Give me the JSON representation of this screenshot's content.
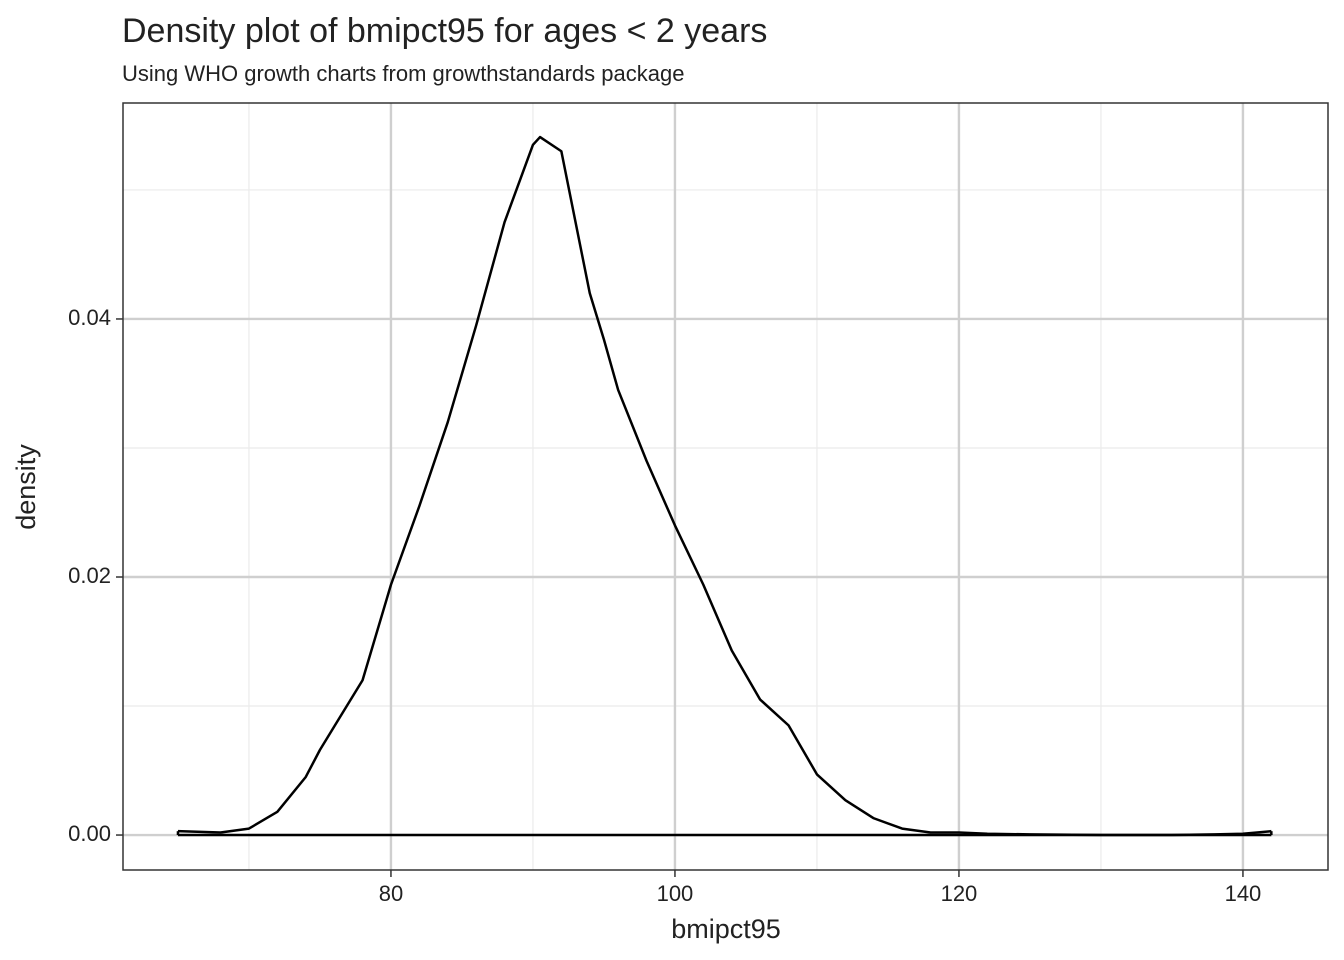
{
  "chart_data": {
    "type": "density",
    "title": "Density plot of bmipct95 for ages < 2 years",
    "subtitle": "Using WHO growth charts from growthstandards package",
    "xlabel": "bmipct95",
    "ylabel": "density",
    "x": [
      65,
      68,
      70,
      72,
      74,
      75,
      76,
      78,
      80,
      82,
      84,
      86,
      88,
      90,
      90.5,
      92,
      94,
      95,
      96,
      98,
      100,
      102,
      104,
      106,
      108,
      110,
      112,
      114,
      116,
      118,
      120,
      122,
      125,
      130,
      135,
      138,
      140,
      142
    ],
    "values": [
      0.0003,
      0.0002,
      0.0005,
      0.0018,
      0.0045,
      0.0066,
      0.0084,
      0.012,
      0.0194,
      0.0255,
      0.032,
      0.0395,
      0.0475,
      0.0535,
      0.0541,
      0.053,
      0.042,
      0.0384,
      0.0345,
      0.029,
      0.024,
      0.0194,
      0.0143,
      0.0105,
      0.0085,
      0.0047,
      0.0027,
      0.0013,
      0.0005,
      0.0002,
      0.0002,
      0.0001,
      5e-05,
      0,
      0,
      5e-05,
      0.0001,
      0.0003
    ],
    "color": "#000000",
    "label_color": "#762a83",
    "xlim": [
      61.13,
      145.99
    ],
    "ylim": [
      -0.00271,
      0.05674
    ],
    "xticks": [
      80,
      100,
      120,
      140
    ],
    "minor_xticks": [
      70,
      90,
      110,
      130
    ],
    "yticks": [
      {
        "value": 0,
        "label": "0.00"
      },
      0.02,
      0.04
    ],
    "minor_yticks": [
      0.01,
      0.03,
      0.05
    ],
    "grid": true
  }
}
